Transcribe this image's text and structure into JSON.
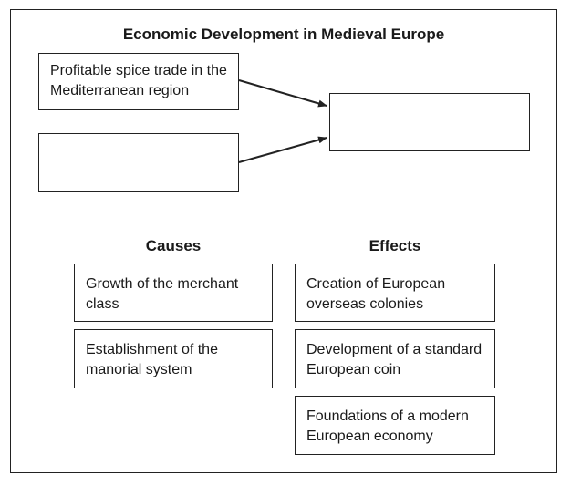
{
  "title": "Economic Development in Medieval Europe",
  "diagram": {
    "input_top": "Profitable spice trade in the Mediterranean region",
    "input_bottom": "",
    "output": ""
  },
  "causes": {
    "heading": "Causes",
    "items": [
      "Growth of the merchant class",
      "Establishment of the manorial system"
    ]
  },
  "effects": {
    "heading": "Effects",
    "items": [
      "Creation of European overseas colonies",
      "Development of a standard European coin",
      "Foundations of a modern European economy"
    ]
  }
}
